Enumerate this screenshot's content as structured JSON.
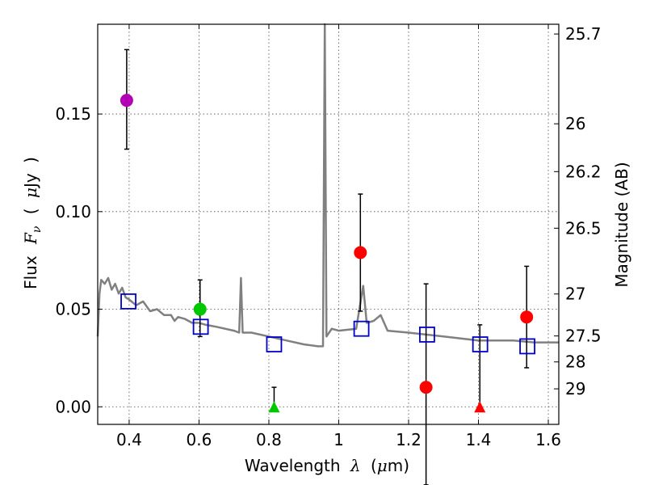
{
  "chart_data": {
    "type": "scatter",
    "xlabel_parts": [
      "Wavelength",
      "λ",
      "(",
      "μ",
      "m)"
    ],
    "ylabel_parts": [
      "Flux",
      "F",
      "ν",
      "(",
      "μ",
      "Jy",
      ")"
    ],
    "y2label": "Magnitude (AB)",
    "xlim": [
      0.31,
      1.63
    ],
    "ylim": [
      -0.009,
      0.196
    ],
    "x_ticks": [
      0.4,
      0.6,
      0.8,
      1.0,
      1.2,
      1.4,
      1.6
    ],
    "x_tick_labels": [
      "0.4",
      "0.6",
      "0.8",
      "1",
      "1.2",
      "1.4",
      "1.6"
    ],
    "y_ticks": [
      0.0,
      0.05,
      0.1,
      0.15
    ],
    "y_tick_labels": [
      "0.00",
      "0.05",
      "0.10",
      "0.15"
    ],
    "y2_ticks": [
      {
        "label": "25.7",
        "flux": 0.191
      },
      {
        "label": "26",
        "flux": 0.145
      },
      {
        "label": "26.2",
        "flux": 0.1205
      },
      {
        "label": "26.5",
        "flux": 0.0915
      },
      {
        "label": "27",
        "flux": 0.0578
      },
      {
        "label": "27.5",
        "flux": 0.0363
      },
      {
        "label": "28",
        "flux": 0.023
      },
      {
        "label": "29",
        "flux": 0.0092
      }
    ],
    "grid": true,
    "series": [
      {
        "kind": "spectrum",
        "color": "#808080",
        "points": [
          [
            0.31,
            0.036
          ],
          [
            0.315,
            0.058
          ],
          [
            0.32,
            0.065
          ],
          [
            0.33,
            0.063
          ],
          [
            0.34,
            0.066
          ],
          [
            0.35,
            0.06
          ],
          [
            0.36,
            0.063
          ],
          [
            0.37,
            0.058
          ],
          [
            0.38,
            0.061
          ],
          [
            0.39,
            0.056
          ],
          [
            0.4,
            0.055
          ],
          [
            0.42,
            0.052
          ],
          [
            0.44,
            0.054
          ],
          [
            0.46,
            0.049
          ],
          [
            0.48,
            0.05
          ],
          [
            0.5,
            0.047
          ],
          [
            0.52,
            0.047
          ],
          [
            0.53,
            0.044
          ],
          [
            0.54,
            0.046
          ],
          [
            0.56,
            0.045
          ],
          [
            0.58,
            0.043
          ],
          [
            0.6,
            0.043
          ],
          [
            0.62,
            0.042
          ],
          [
            0.65,
            0.041
          ],
          [
            0.7,
            0.039
          ],
          [
            0.715,
            0.038
          ],
          [
            0.72,
            0.066
          ],
          [
            0.725,
            0.038
          ],
          [
            0.75,
            0.038
          ],
          [
            0.8,
            0.036
          ],
          [
            0.85,
            0.034
          ],
          [
            0.9,
            0.032
          ],
          [
            0.94,
            0.031
          ],
          [
            0.955,
            0.031
          ],
          [
            0.96,
            0.196
          ],
          [
            0.965,
            0.036
          ],
          [
            0.98,
            0.04
          ],
          [
            1.0,
            0.039
          ],
          [
            1.05,
            0.04
          ],
          [
            1.07,
            0.062
          ],
          [
            1.08,
            0.043
          ],
          [
            1.1,
            0.044
          ],
          [
            1.12,
            0.047
          ],
          [
            1.14,
            0.039
          ],
          [
            1.2,
            0.038
          ],
          [
            1.3,
            0.036
          ],
          [
            1.4,
            0.034
          ],
          [
            1.5,
            0.034
          ],
          [
            1.56,
            0.033
          ],
          [
            1.63,
            0.033
          ]
        ]
      },
      {
        "kind": "circle",
        "name": "",
        "points": [
          {
            "x": 0.393,
            "y": 0.157,
            "yerr": [
              0.025,
              0.026
            ],
            "color": "#b400b4"
          },
          {
            "x": 0.603,
            "y": 0.05,
            "yerr": [
              0.014,
              0.015
            ],
            "color": "#00c800"
          },
          {
            "x": 1.062,
            "y": 0.079,
            "yerr": [
              0.03,
              0.03
            ],
            "color": "#ff0000"
          },
          {
            "x": 1.25,
            "y": 0.01,
            "yerr": [
              0.05,
              0.053
            ],
            "color": "#ff0000"
          },
          {
            "x": 1.538,
            "y": 0.046,
            "yerr": [
              0.026,
              0.026
            ],
            "color": "#ff0000"
          }
        ]
      },
      {
        "kind": "triangle",
        "name": "",
        "points": [
          {
            "x": 0.815,
            "y": 0.0,
            "yerr": [
              0.0,
              0.01
            ],
            "color": "#00c800"
          },
          {
            "x": 1.404,
            "y": 0.0,
            "yerr": [
              0.0,
              0.042
            ],
            "color": "#ff0000"
          }
        ]
      },
      {
        "kind": "square",
        "name": "",
        "color": "#0000cc",
        "points": [
          {
            "x": 0.398,
            "y": 0.054
          },
          {
            "x": 0.605,
            "y": 0.041
          },
          {
            "x": 0.815,
            "y": 0.032
          },
          {
            "x": 1.065,
            "y": 0.04
          },
          {
            "x": 1.253,
            "y": 0.037
          },
          {
            "x": 1.405,
            "y": 0.032
          },
          {
            "x": 1.54,
            "y": 0.031
          }
        ]
      }
    ]
  }
}
